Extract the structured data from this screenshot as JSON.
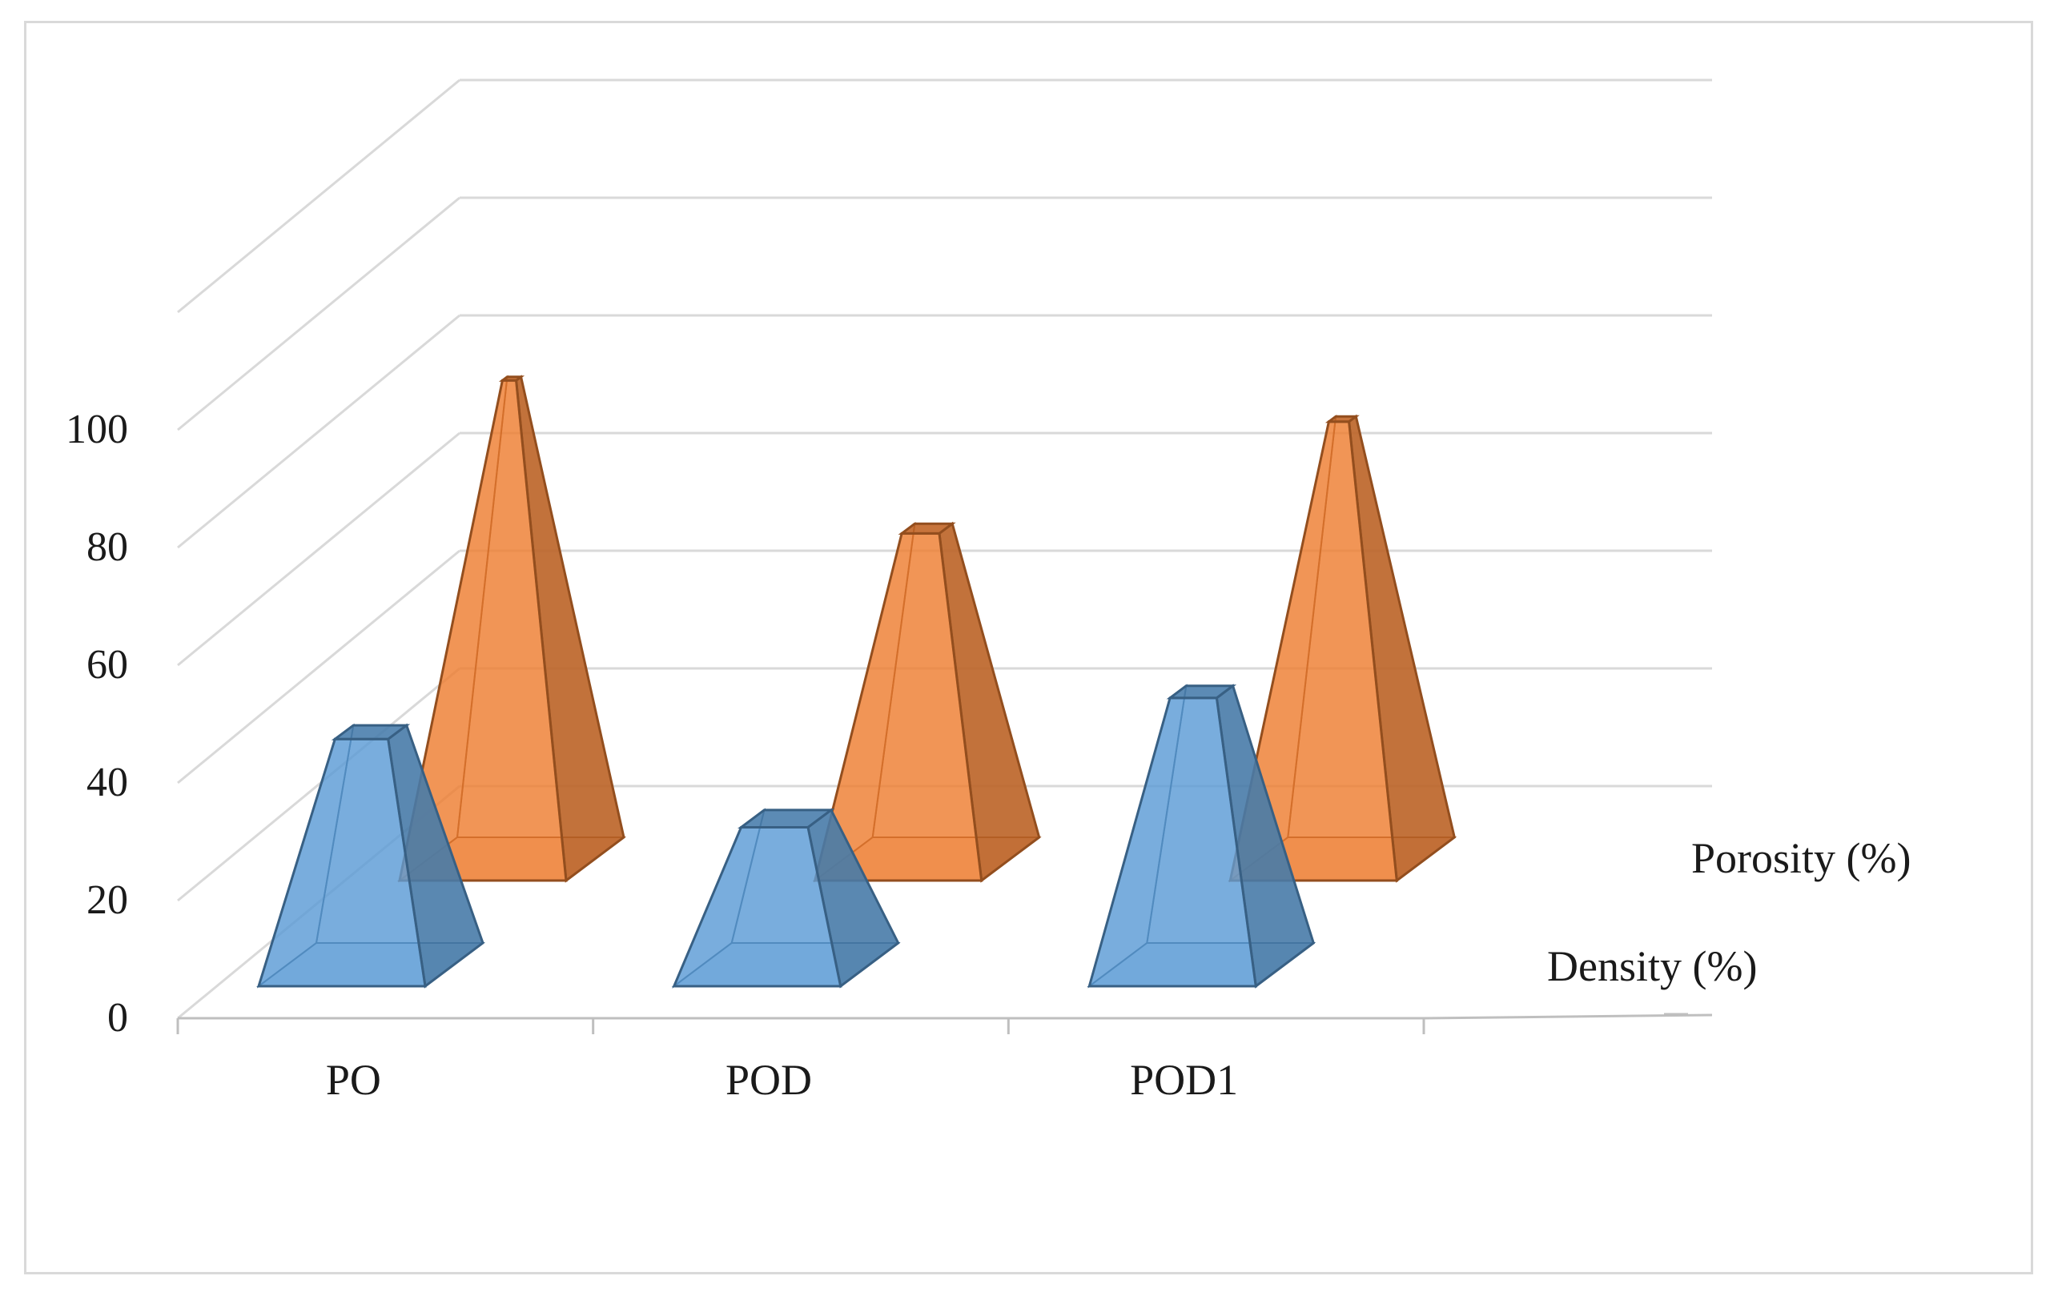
{
  "chart_data": {
    "type": "bar",
    "subtype": "3d-pyramid",
    "title": "",
    "xlabel": "",
    "ylabel": "",
    "categories": [
      "PO",
      "POD",
      "POD1"
    ],
    "series": [
      {
        "name": "Density (%)",
        "values": [
          42,
          27,
          49
        ],
        "color": "#5b9bd5"
      },
      {
        "name": "Porosity (%)",
        "values": [
          85,
          59,
          78
        ],
        "color": "#ed7d31"
      }
    ],
    "yticks": [
      "0",
      "20",
      "40",
      "60",
      "80",
      "100"
    ],
    "ylim": [
      0,
      120
    ],
    "grid": true
  }
}
